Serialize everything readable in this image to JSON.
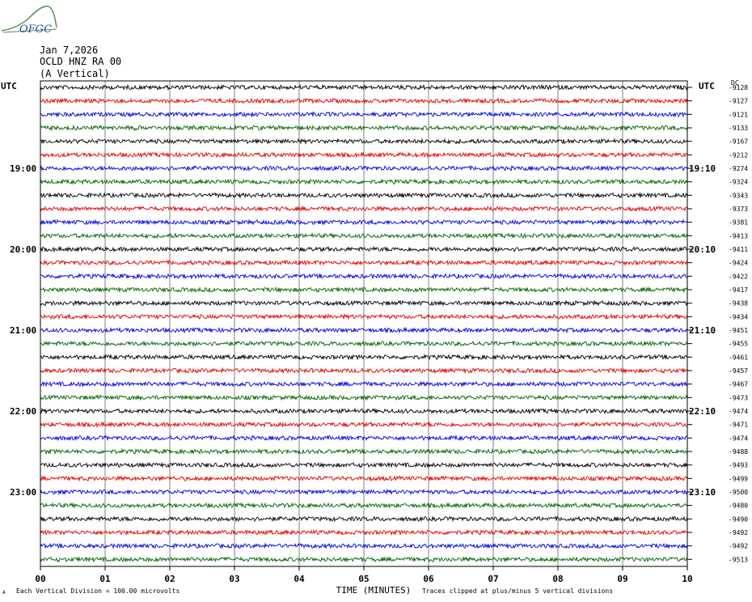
{
  "header": {
    "logo_text": "OFGC",
    "date": "Jan 7,2026",
    "station": "OCLD HNZ RA 00",
    "component": "(A Vertical)"
  },
  "chart_data": {
    "type": "line",
    "title": "",
    "left_axis_label": "UTC",
    "right_axis_label": "UTC",
    "right_top_label": "DC",
    "left_hour_labels": [
      {
        "label": "19:00",
        "row": 6
      },
      {
        "label": "20:00",
        "row": 12
      },
      {
        "label": "21:00",
        "row": 18
      },
      {
        "label": "22:00",
        "row": 24
      },
      {
        "label": "23:00",
        "row": 30
      }
    ],
    "right_hour_labels": [
      {
        "label": "19:10",
        "row": 6
      },
      {
        "label": "20:10",
        "row": 12
      },
      {
        "label": "21:10",
        "row": 18
      },
      {
        "label": "22:10",
        "row": 24
      },
      {
        "label": "23:10",
        "row": 30
      }
    ],
    "x_ticks": [
      "00",
      "01",
      "02",
      "03",
      "04",
      "05",
      "06",
      "07",
      "08",
      "09",
      "10"
    ],
    "xlim": [
      0,
      10
    ],
    "xlabel": "TIME (MINUTES)",
    "minutes_per_trace": 10,
    "trace_count": 36,
    "trace_colors": [
      "#000000",
      "#e00000",
      "#0000e0",
      "#006400"
    ],
    "dc_offsets": [
      "-9128",
      "-9127",
      "-9121",
      "-9133",
      "-9167",
      "-9212",
      "-9274",
      "-9324",
      "-9343",
      "-9373",
      "-9381",
      "-9413",
      "-9411",
      "-9424",
      "-9422",
      "-9417",
      "-9438",
      "-9434",
      "-9451",
      "-9455",
      "-9461",
      "-9457",
      "-9467",
      "-9473",
      "-9474",
      "-9471",
      "-9474",
      "-9488",
      "-9493",
      "-9499",
      "-9500",
      "-9480",
      "-9490",
      "-9492",
      "-9492",
      "-9513"
    ],
    "grid": true,
    "footer_left": "Each Vertical Division =  100.00 microvolts",
    "footer_right": "Traces clipped at plus/minus 5 vertical divisions",
    "footer_mark": "A"
  }
}
